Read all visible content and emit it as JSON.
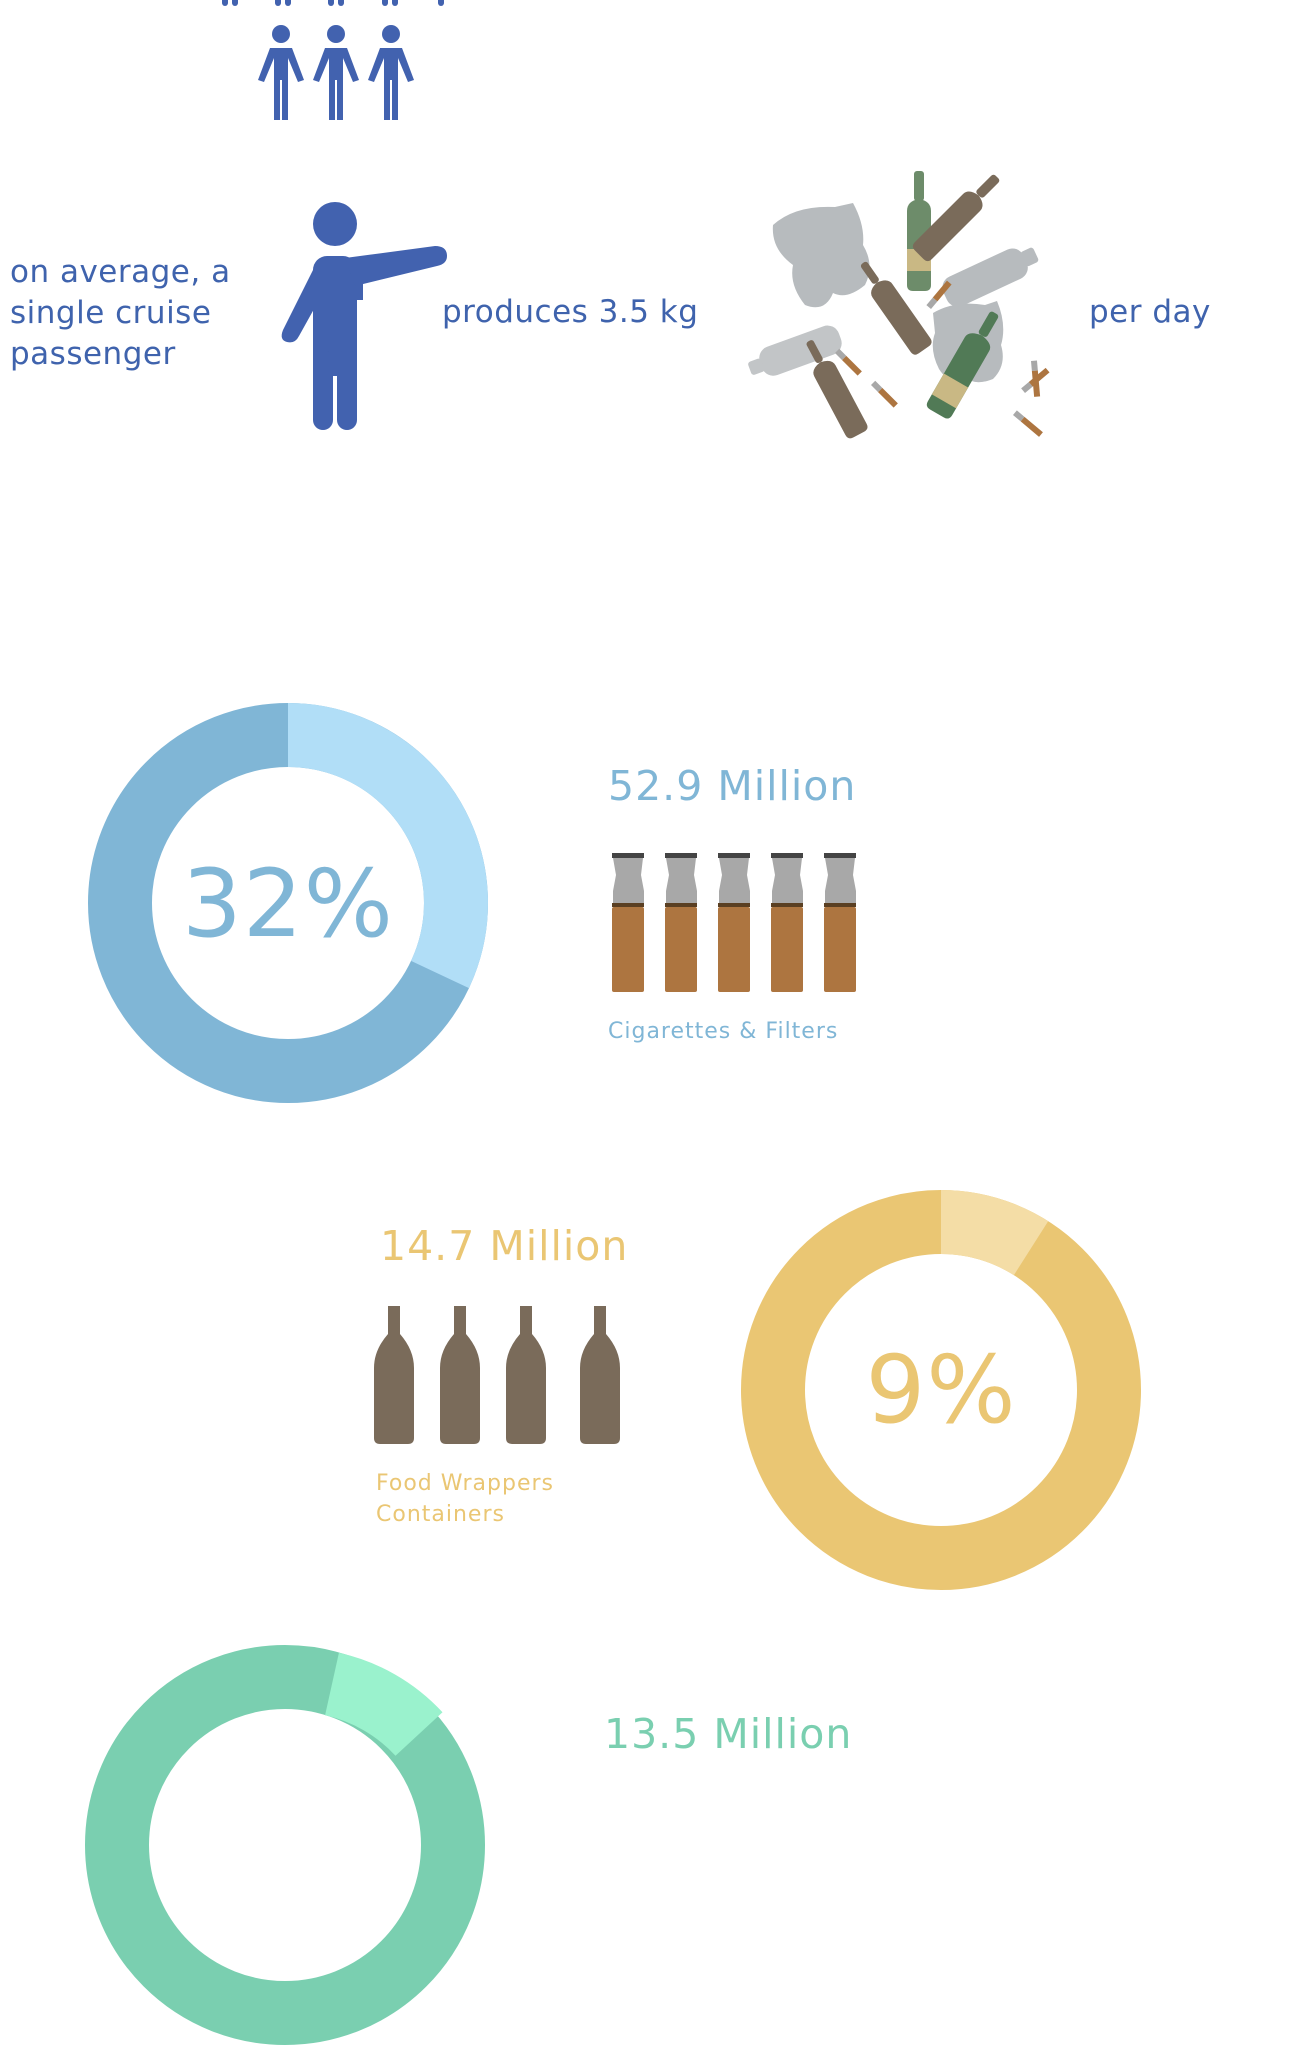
{
  "intro": {
    "line_left": "on average, a single cruise passenger",
    "line_mid": "produces 3.5 kg",
    "line_right": "per day"
  },
  "stats": [
    {
      "percent": "32%",
      "amount": "52.9 Million",
      "label": "Cigarettes & Filters",
      "share": 0.32,
      "colors": {
        "main": "#80b6d6",
        "highlight": "#b1def7"
      }
    },
    {
      "percent": "9%",
      "amount": "14.7 Million",
      "label_line1": "Food Wrappers",
      "label_line2": "Containers",
      "share": 0.09,
      "colors": {
        "main": "#eac673",
        "highlight": "#f4dda6"
      }
    },
    {
      "amount": "13.5 Million",
      "colors": {
        "main": "#7acfb0",
        "highlight": "#9af2cd"
      }
    }
  ],
  "colors": {
    "people": "#4262af",
    "bottle_brown": "#7a6b5a",
    "bottle_green": "#6d8c6a",
    "bottle_label": "#c9b884",
    "bag_gray": "#b7bbbe",
    "cig_filter": "#ad7540",
    "cig_paper": "#a8a8a8",
    "cig_tip": "#444444"
  },
  "icons": {
    "people": "people-group-icon",
    "pointer": "pointing-person-icon",
    "trash": "trash-pile-icon",
    "cigarette": "cigarette-icon",
    "bottle": "bottle-icon"
  }
}
